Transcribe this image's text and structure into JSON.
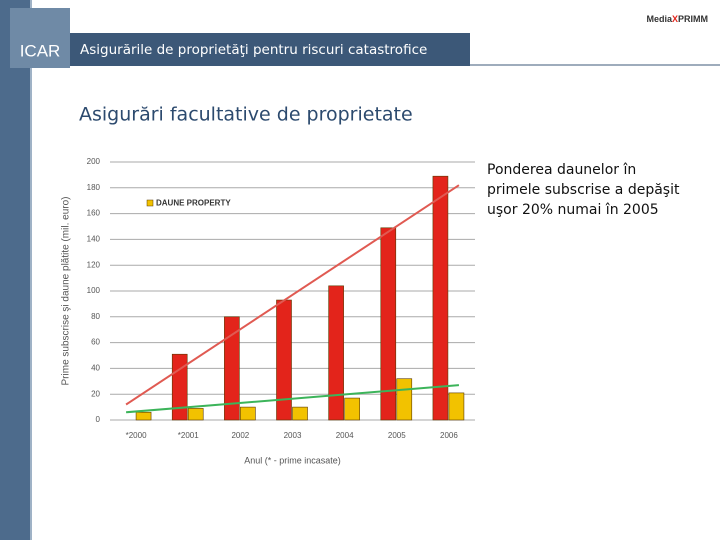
{
  "header": {
    "title": "Asigurările de proprietăţi pentru riscuri catastrofice",
    "logo": "ICAR",
    "brand": [
      "Media",
      "X",
      "PRIMM"
    ]
  },
  "subtitle": "Asigurări facultative de proprietate",
  "note": "Ponderea daunelor în primele subscrise a depăşit uşor 20% numai în 2005",
  "chart_data": {
    "type": "bar",
    "x_label": "Anul (* - prime incasate)",
    "y_label": "Prime subscrise şi daune plătite (mil. euro)",
    "categories": [
      "*2000",
      "*2001",
      "2002",
      "2003",
      "2004",
      "2005",
      "2006"
    ],
    "series": [
      {
        "color": "#e3241b",
        "values": [
          null,
          51,
          80,
          93,
          104,
          149,
          189
        ],
        "trend": {
          "start": 12,
          "end": 182,
          "color": "#e05a52"
        }
      },
      {
        "name": "DAUNE PROPERTY",
        "color": "#f2c200",
        "values": [
          6,
          9,
          10,
          10,
          17,
          32,
          21
        ],
        "trend": {
          "start": 6,
          "end": 27,
          "color": "#3cb45a"
        }
      }
    ],
    "ylim": [
      0,
      200
    ],
    "yticks": [
      0,
      20,
      40,
      60,
      80,
      100,
      120,
      140,
      160,
      180,
      200
    ],
    "grid": true
  }
}
